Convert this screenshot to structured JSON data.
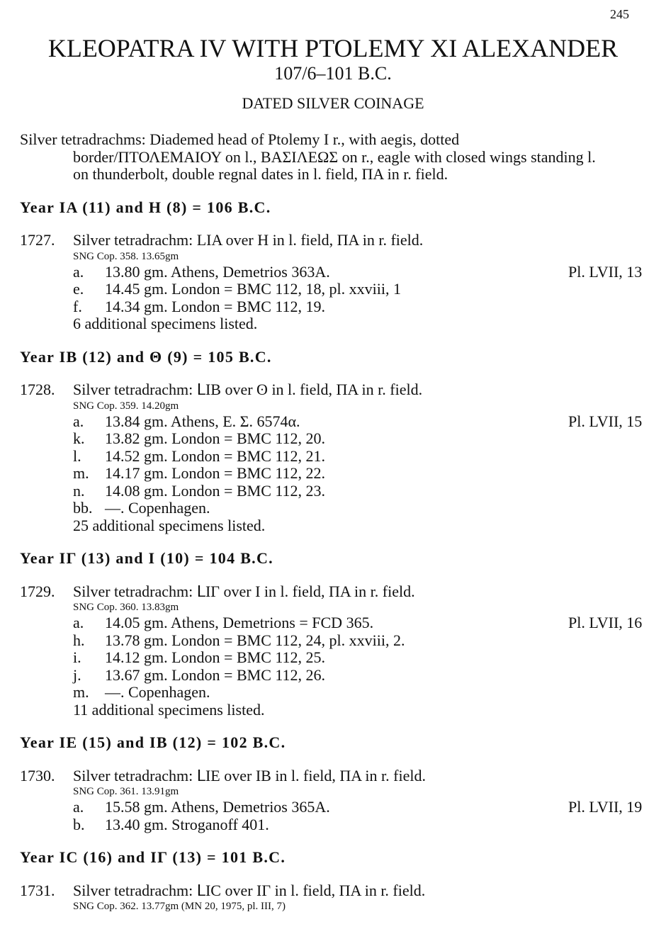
{
  "page_number": "245",
  "title": "KLEOPATRA IV WITH PTOLEMY XI ALEXANDER",
  "dates": "107/6–101 B.C.",
  "section": "DATED SILVER COINAGE",
  "intro": [
    "Silver tetradrachms: Diademed head of Ptolemy I r., with aegis, dotted",
    "border/ΠΤΟΛΕΜΑΙΟΥ on l., ΒΑΣΙΛΕΩΣ on r., eagle with closed wings standing l.",
    "on thunderbolt, double regnal dates in l. field, ΠΑ in r. field."
  ],
  "groups": [
    {
      "heading": "Year IA (11) and H (8) = 106 B.C.",
      "number": "1727.",
      "description": "Silver tetradrachm: LIA over H in l. field, ΠA in r. field.",
      "reference": "SNG Cop. 358.  13.65gm",
      "specimens": [
        {
          "letter": "a.",
          "text": "13.80 gm. Athens, Demetrios 363A.",
          "plate": "Pl. LVII, 13"
        },
        {
          "letter": "e.",
          "text": "14.45 gm. London = BMC 112, 18, pl. xxviii, 1"
        },
        {
          "letter": "f.",
          "text": "14.34 gm. London = BMC 112, 19."
        }
      ],
      "note": "6 additional specimens listed."
    },
    {
      "heading": "Year IB (12) and Θ (9) = 105 B.C.",
      "number": "1728.",
      "description": "Silver tetradrachm: ᒪIB over ʘ in l. field, ΠA in r. field.",
      "reference": "SNG Cop. 359.  14.20gm",
      "specimens": [
        {
          "letter": "a.",
          "text": "13.84 gm. Athens, E. Σ. 6574α.",
          "plate": "Pl. LVII, 15"
        },
        {
          "letter": "k.",
          "text": "13.82 gm. London = BMC 112, 20."
        },
        {
          "letter": "l.",
          "text": "14.52 gm. London = BMC 112, 21."
        },
        {
          "letter": "m.",
          "text": "14.17 gm. London = BMC 112, 22."
        },
        {
          "letter": "n.",
          "text": "14.08 gm. London = BMC 112, 23."
        },
        {
          "letter": "bb.",
          "text": "—. Copenhagen."
        }
      ],
      "note": "25 additional specimens listed."
    },
    {
      "heading": "Year IΓ (13) and I (10) = 104 B.C.",
      "number": "1729.",
      "description": "Silver tetradrachm: ᒪIΓ over I in l. field, ΠA in r. field.",
      "reference": "SNG Cop. 360.  13.83gm",
      "specimens": [
        {
          "letter": "a.",
          "text": "14.05 gm. Athens, Demetrions = FCD 365.",
          "plate": "Pl. LVII, 16"
        },
        {
          "letter": "h.",
          "text": "13.78 gm. London = BMC 112, 24, pl. xxviii, 2."
        },
        {
          "letter": "i.",
          "text": "14.12 gm. London = BMC 112, 25."
        },
        {
          "letter": "j.",
          "text": "13.67 gm. London = BMC 112, 26."
        },
        {
          "letter": "m.",
          "text": "—. Copenhagen."
        }
      ],
      "note": "11 additional specimens listed."
    },
    {
      "heading": "Year IE (15) and IB (12) = 102 B.C.",
      "number": "1730.",
      "description": "Silver tetradrachm: ᒪIE over IB in l. field, ΠA in r. field.",
      "reference": "SNG Cop. 361.  13.91gm",
      "specimens": [
        {
          "letter": "a.",
          "text": "15.58 gm. Athens, Demetrios 365A.",
          "plate": "Pl. LVII, 19"
        },
        {
          "letter": "b.",
          "text": "13.40 gm. Stroganoff 401."
        }
      ]
    },
    {
      "heading": "Year IC (16) and IΓ (13) = 101 B.C.",
      "number": "1731.",
      "description": "Silver tetradrachm: ᒪIC over IΓ in l. field, ΠA in r. field.",
      "reference": "SNG Cop. 362.  13.77gm (MN 20, 1975, pl. III, 7)"
    }
  ]
}
